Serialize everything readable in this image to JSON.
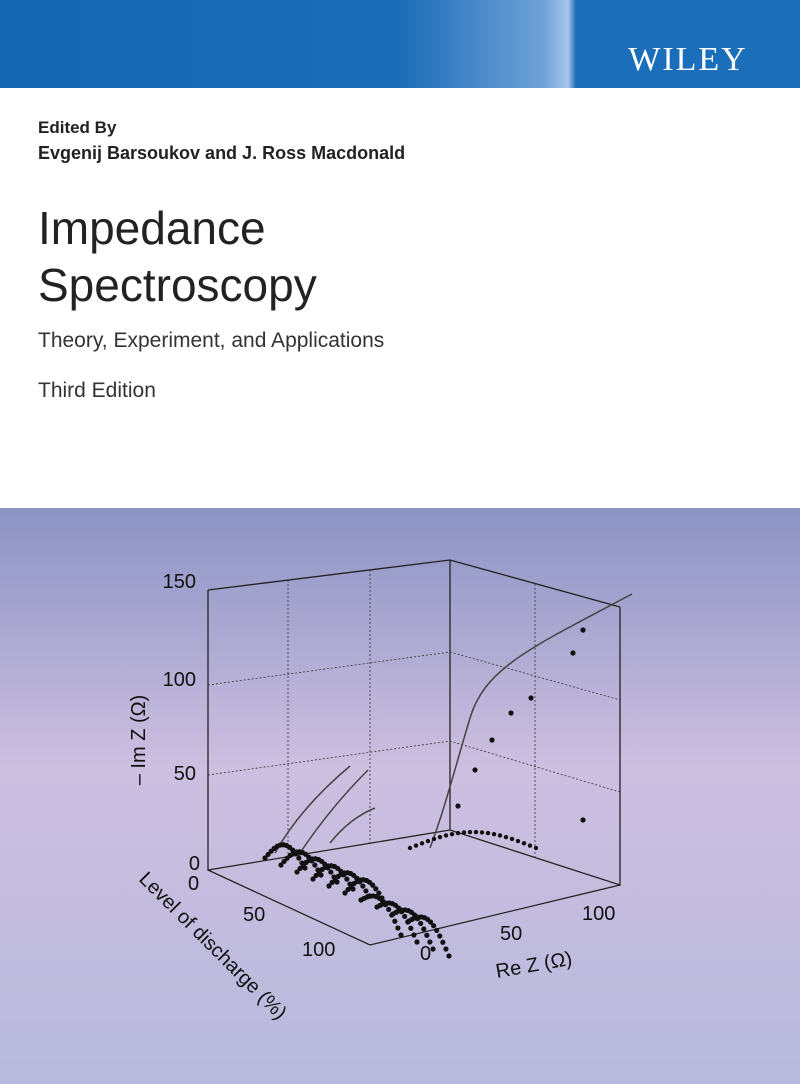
{
  "publisher": "WILEY",
  "editors_label": "Edited By",
  "editors": "Evgenij Barsoukov and J. Ross Macdonald",
  "title_line1": "Impedance",
  "title_line2": "Spectroscopy",
  "subtitle": "Theory, Experiment, and Applications",
  "edition": "Third Edition",
  "figure": {
    "z_axis": {
      "label": "– Im Z (Ω)",
      "ticks": [
        "150",
        "100",
        "50",
        "0"
      ]
    },
    "y_axis": {
      "label": "Level of discharge (%)",
      "ticks": [
        "0",
        "50",
        "100"
      ]
    },
    "x_axis": {
      "label": "Re Z (Ω)",
      "ticks": [
        "0",
        "50",
        "100"
      ]
    }
  }
}
